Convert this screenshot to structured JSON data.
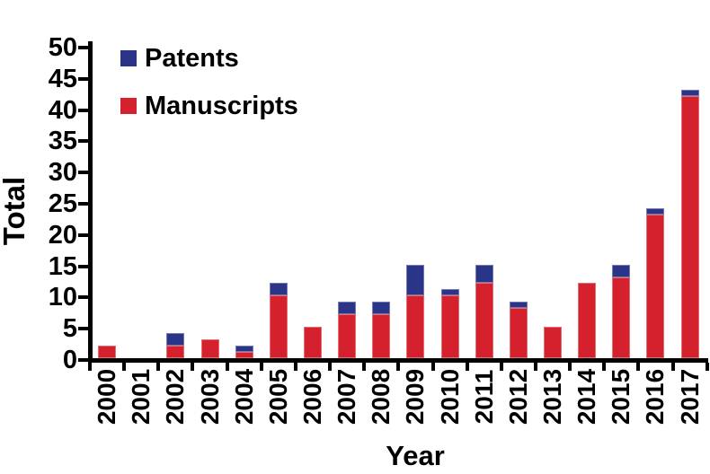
{
  "chart_data": {
    "type": "bar",
    "stacked": true,
    "title": "",
    "xlabel": "Year",
    "ylabel": "Total",
    "ylim": [
      0,
      50
    ],
    "yticks": [
      0,
      5,
      10,
      15,
      20,
      25,
      30,
      35,
      40,
      45,
      50
    ],
    "grid": false,
    "legend_position": "top-left-inside",
    "background": "#FFFFFF",
    "axis_color": "#000000",
    "categories": [
      "2000",
      "2001",
      "2002",
      "2003",
      "2004",
      "2005",
      "2006",
      "2007",
      "2008",
      "2009",
      "2010",
      "2011",
      "2012",
      "2013",
      "2014",
      "2015",
      "2016",
      "2017"
    ],
    "series": [
      {
        "name": "Patents",
        "color": "#2B3588",
        "stack_position": "top",
        "values": [
          0,
          0,
          2,
          0,
          1,
          2,
          0,
          2,
          2,
          5,
          1,
          3,
          1,
          0,
          0,
          2,
          1,
          1
        ]
      },
      {
        "name": "Manuscripts",
        "color": "#D4212D",
        "stack_position": "bottom",
        "values": [
          2,
          0,
          2,
          3,
          1,
          10,
          5,
          7,
          7,
          10,
          10,
          12,
          8,
          5,
          12,
          13,
          23,
          42
        ]
      }
    ],
    "totals": [
      2,
      0,
      4,
      3,
      2,
      12,
      5,
      9,
      9,
      15,
      11,
      15,
      9,
      5,
      12,
      15,
      24,
      43
    ]
  }
}
